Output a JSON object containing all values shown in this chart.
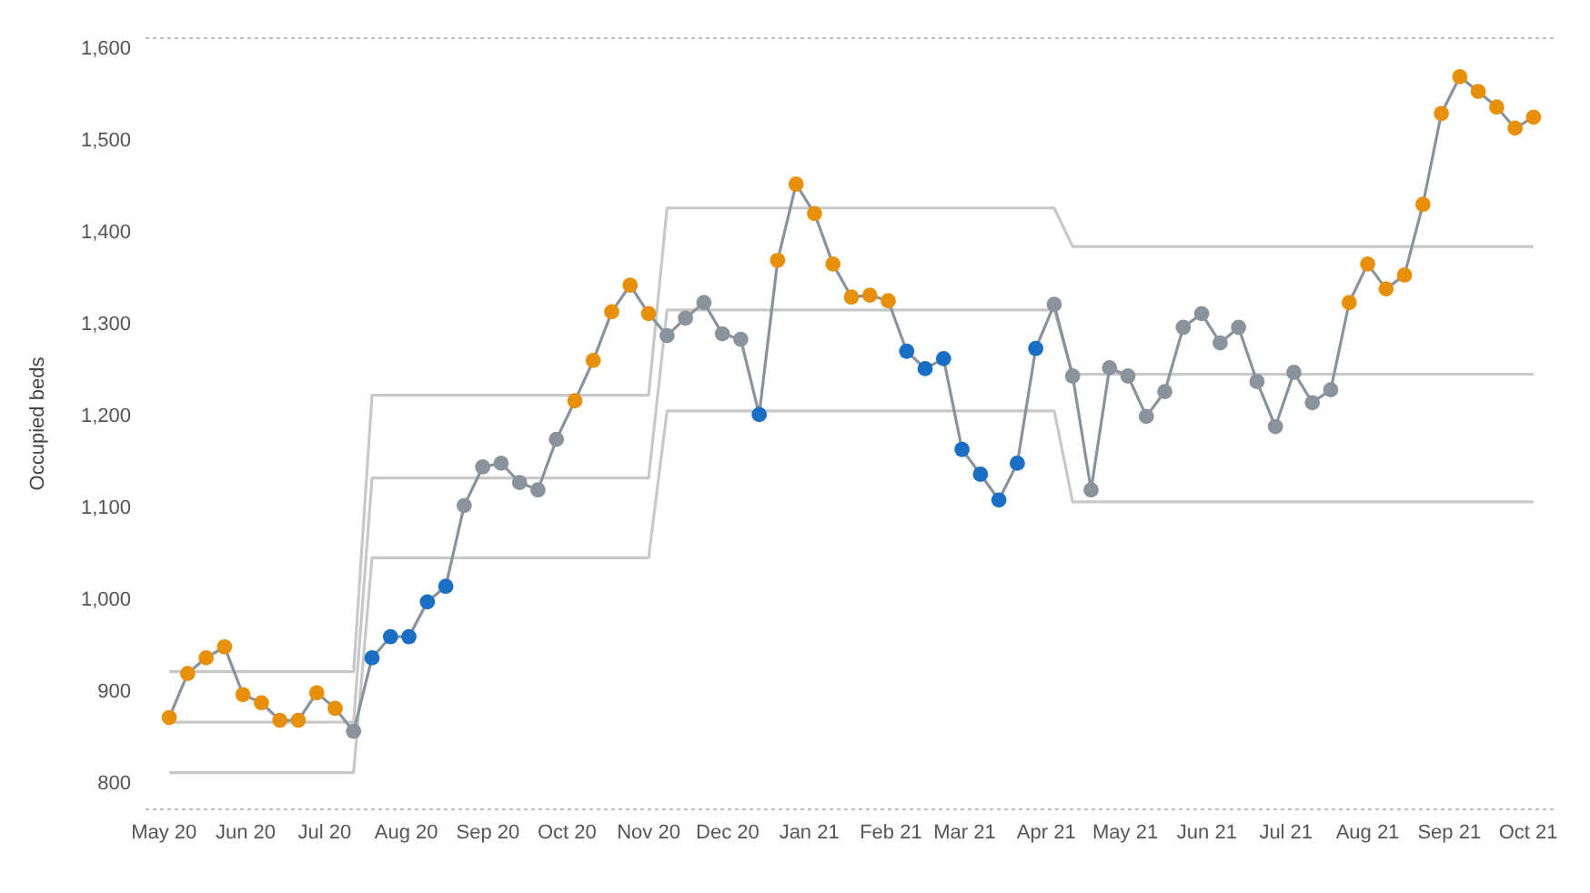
{
  "chart_data": {
    "type": "line",
    "ylabel": "Occupied beds",
    "x": [
      "2020-05-03",
      "2020-05-10",
      "2020-05-17",
      "2020-05-24",
      "2020-05-31",
      "2020-06-07",
      "2020-06-14",
      "2020-06-21",
      "2020-06-28",
      "2020-07-05",
      "2020-07-12",
      "2020-07-19",
      "2020-07-26",
      "2020-08-02",
      "2020-08-09",
      "2020-08-16",
      "2020-08-23",
      "2020-08-30",
      "2020-09-06",
      "2020-09-13",
      "2020-09-20",
      "2020-09-27",
      "2020-10-04",
      "2020-10-11",
      "2020-10-18",
      "2020-10-25",
      "2020-11-01",
      "2020-11-08",
      "2020-11-15",
      "2020-11-22",
      "2020-11-29",
      "2020-12-06",
      "2020-12-13",
      "2020-12-20",
      "2020-12-27",
      "2021-01-03",
      "2021-01-10",
      "2021-01-17",
      "2021-01-24",
      "2021-01-31",
      "2021-02-07",
      "2021-02-14",
      "2021-02-21",
      "2021-02-28",
      "2021-03-07",
      "2021-03-14",
      "2021-03-21",
      "2021-03-28",
      "2021-04-04",
      "2021-04-11",
      "2021-04-18",
      "2021-04-25",
      "2021-05-02",
      "2021-05-09",
      "2021-05-16",
      "2021-05-23",
      "2021-05-30",
      "2021-06-06",
      "2021-06-13",
      "2021-06-20",
      "2021-06-27",
      "2021-07-04",
      "2021-07-11",
      "2021-07-18",
      "2021-07-25",
      "2021-08-01",
      "2021-08-08",
      "2021-08-15",
      "2021-08-22",
      "2021-08-29",
      "2021-09-05",
      "2021-09-12",
      "2021-09-19",
      "2021-09-26",
      "2021-10-03"
    ],
    "series": [
      {
        "color": "#c8c8c8",
        "marker": "none",
        "values": [
          920,
          920,
          920,
          920,
          920,
          920,
          920,
          920,
          920,
          920,
          920,
          1221,
          1221,
          1221,
          1221,
          1221,
          1221,
          1221,
          1221,
          1221,
          1221,
          1221,
          1221,
          1221,
          1221,
          1221,
          1221,
          1425,
          1425,
          1425,
          1425,
          1425,
          1425,
          1425,
          1425,
          1425,
          1425,
          1425,
          1425,
          1425,
          1425,
          1425,
          1425,
          1425,
          1425,
          1425,
          1425,
          1425,
          1425,
          1383,
          1383,
          1383,
          1383,
          1383,
          1383,
          1383,
          1383,
          1383,
          1383,
          1383,
          1383,
          1383,
          1383,
          1383,
          1383,
          1383,
          1383,
          1383,
          1383,
          1383,
          1383,
          1383,
          1383,
          1383,
          1383
        ]
      },
      {
        "color": "#c8c8c8",
        "marker": "none",
        "values": [
          865,
          865,
          865,
          865,
          865,
          865,
          865,
          865,
          865,
          865,
          865,
          1131,
          1131,
          1131,
          1131,
          1131,
          1131,
          1131,
          1131,
          1131,
          1131,
          1131,
          1131,
          1131,
          1131,
          1131,
          1131,
          1314,
          1314,
          1314,
          1314,
          1314,
          1314,
          1314,
          1314,
          1314,
          1314,
          1314,
          1314,
          1314,
          1314,
          1314,
          1314,
          1314,
          1314,
          1314,
          1314,
          1314,
          1314,
          1244,
          1244,
          1244,
          1244,
          1244,
          1244,
          1244,
          1244,
          1244,
          1244,
          1244,
          1244,
          1244,
          1244,
          1244,
          1244,
          1244,
          1244,
          1244,
          1244,
          1244,
          1244,
          1244,
          1244,
          1244,
          1244
        ]
      },
      {
        "color": "#c8c8c8",
        "marker": "none",
        "values": [
          810,
          810,
          810,
          810,
          810,
          810,
          810,
          810,
          810,
          810,
          810,
          1044,
          1044,
          1044,
          1044,
          1044,
          1044,
          1044,
          1044,
          1044,
          1044,
          1044,
          1044,
          1044,
          1044,
          1044,
          1044,
          1204,
          1204,
          1204,
          1204,
          1204,
          1204,
          1204,
          1204,
          1204,
          1204,
          1204,
          1204,
          1204,
          1204,
          1204,
          1204,
          1204,
          1204,
          1204,
          1204,
          1204,
          1204,
          1105,
          1105,
          1105,
          1105,
          1105,
          1105,
          1105,
          1105,
          1105,
          1105,
          1105,
          1105,
          1105,
          1105,
          1105,
          1105,
          1105,
          1105,
          1105,
          1105,
          1105,
          1105,
          1105,
          1105,
          1105,
          1105
        ]
      },
      {
        "color": "#8a939c",
        "marker": "circle",
        "values": [
          870,
          918,
          935,
          947,
          895,
          886,
          867,
          867,
          897,
          880,
          855,
          935,
          958,
          958,
          996,
          1013,
          1101,
          1143,
          1147,
          1126,
          1118,
          1173,
          1215,
          1259,
          1312,
          1341,
          1310,
          1286,
          1305,
          1322,
          1288,
          1282,
          1200,
          1368,
          1451,
          1419,
          1364,
          1328,
          1330,
          1324,
          1269,
          1250,
          1261,
          1162,
          1135,
          1107,
          1147,
          1272,
          1320,
          1242,
          1118,
          1251,
          1242,
          1198,
          1225,
          1295,
          1310,
          1278,
          1295,
          1236,
          1187,
          1246,
          1213,
          1227,
          1322,
          1364,
          1337,
          1352,
          1429,
          1528,
          1568,
          1552,
          1535,
          1512,
          1524
        ],
        "colors": [
          "#e8900c",
          "#e8900c",
          "#e8900c",
          "#e8900c",
          "#e8900c",
          "#e8900c",
          "#e8900c",
          "#e8900c",
          "#e8900c",
          "#e8900c",
          "#8a939c",
          "#1a6fc4",
          "#1a6fc4",
          "#1a6fc4",
          "#1a6fc4",
          "#1a6fc4",
          "#8a939c",
          "#8a939c",
          "#8a939c",
          "#8a939c",
          "#8a939c",
          "#8a939c",
          "#e8900c",
          "#e8900c",
          "#e8900c",
          "#e8900c",
          "#e8900c",
          "#8a939c",
          "#8a939c",
          "#8a939c",
          "#8a939c",
          "#8a939c",
          "#1a6fc4",
          "#e8900c",
          "#e8900c",
          "#e8900c",
          "#e8900c",
          "#e8900c",
          "#e8900c",
          "#e8900c",
          "#1a6fc4",
          "#1a6fc4",
          "#1a6fc4",
          "#1a6fc4",
          "#1a6fc4",
          "#1a6fc4",
          "#1a6fc4",
          "#1a6fc4",
          "#8a939c",
          "#8a939c",
          "#8a939c",
          "#8a939c",
          "#8a939c",
          "#8a939c",
          "#8a939c",
          "#8a939c",
          "#8a939c",
          "#8a939c",
          "#8a939c",
          "#8a939c",
          "#8a939c",
          "#8a939c",
          "#8a939c",
          "#8a939c",
          "#e8900c",
          "#e8900c",
          "#e8900c",
          "#e8900c",
          "#e8900c",
          "#e8900c",
          "#e8900c",
          "#e8900c",
          "#e8900c",
          "#e8900c",
          "#e8900c"
        ]
      }
    ],
    "xlim": [
      "2020-04-24",
      "2021-10-12"
    ],
    "xticks": [
      {
        "value": "2020-05-01",
        "label": "May 20"
      },
      {
        "value": "2020-06-01",
        "label": "Jun 20"
      },
      {
        "value": "2020-07-01",
        "label": "Jul 20"
      },
      {
        "value": "2020-08-01",
        "label": "Aug 20"
      },
      {
        "value": "2020-09-01",
        "label": "Sep 20"
      },
      {
        "value": "2020-10-01",
        "label": "Oct 20"
      },
      {
        "value": "2020-11-01",
        "label": "Nov 20"
      },
      {
        "value": "2020-12-01",
        "label": "Dec 20"
      },
      {
        "value": "2021-01-01",
        "label": "Jan 21"
      },
      {
        "value": "2021-02-01",
        "label": "Feb 21"
      },
      {
        "value": "2021-03-01",
        "label": "Mar 21"
      },
      {
        "value": "2021-04-01",
        "label": "Apr 21"
      },
      {
        "value": "2021-05-01",
        "label": "May 21"
      },
      {
        "value": "2021-06-01",
        "label": "Jun 21"
      },
      {
        "value": "2021-07-01",
        "label": "Jul 21"
      },
      {
        "value": "2021-08-01",
        "label": "Aug 21"
      },
      {
        "value": "2021-09-01",
        "label": "Sep 21"
      },
      {
        "value": "2021-10-01",
        "label": "Oct 21"
      }
    ],
    "ylim": [
      770,
      1610
    ],
    "yticks": [
      {
        "value": 800,
        "label": "800"
      },
      {
        "value": 900,
        "label": "900"
      },
      {
        "value": 1000,
        "label": "1,000"
      },
      {
        "value": 1100,
        "label": "1,100"
      },
      {
        "value": 1200,
        "label": "1,200"
      },
      {
        "value": 1300,
        "label": "1,300"
      },
      {
        "value": 1400,
        "label": "1,400"
      },
      {
        "value": 1500,
        "label": "1,500"
      },
      {
        "value": 1600,
        "label": "1,600"
      }
    ]
  }
}
